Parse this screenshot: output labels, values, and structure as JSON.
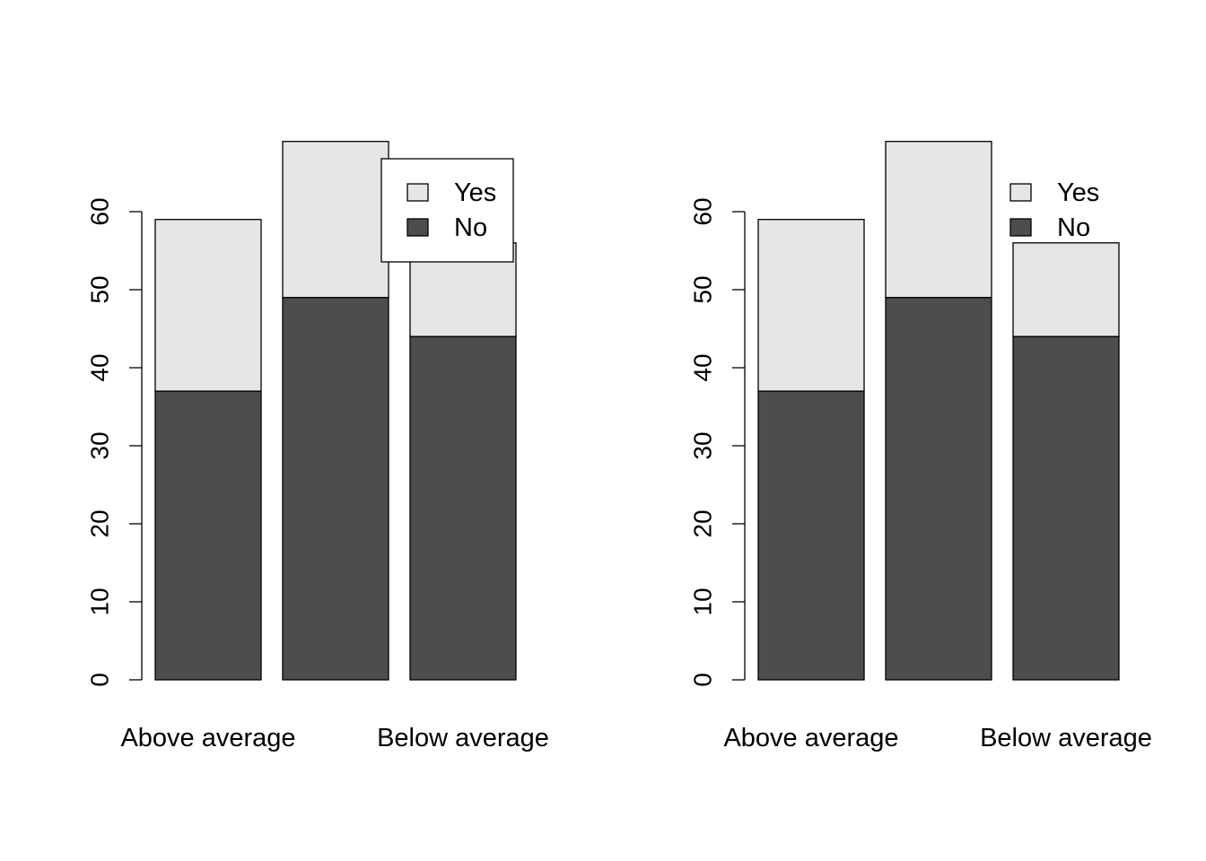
{
  "chart_data": [
    {
      "type": "bar",
      "stacked": true,
      "categories": [
        "Above average",
        "",
        "Below average"
      ],
      "series": [
        {
          "name": "No",
          "values": [
            37,
            49,
            44
          ],
          "color": "#4d4d4d"
        },
        {
          "name": "Yes",
          "values": [
            22,
            20,
            12
          ],
          "color": "#e6e6e6"
        }
      ],
      "yticks": [
        "0",
        "10",
        "20",
        "30",
        "40",
        "50",
        "60"
      ],
      "ylim": [
        0,
        69
      ],
      "grid": false,
      "legend": {
        "placement": "top-right",
        "boxed": true,
        "entries": [
          "Yes",
          "No"
        ]
      }
    },
    {
      "type": "bar",
      "stacked": true,
      "categories": [
        "Above average",
        "",
        "Below average"
      ],
      "series": [
        {
          "name": "No",
          "values": [
            37,
            49,
            44
          ],
          "color": "#4d4d4d"
        },
        {
          "name": "Yes",
          "values": [
            22,
            20,
            12
          ],
          "color": "#e6e6e6"
        }
      ],
      "yticks": [
        "0",
        "10",
        "20",
        "30",
        "40",
        "50",
        "60"
      ],
      "ylim": [
        0,
        69
      ],
      "grid": false,
      "legend": {
        "placement": "top-right",
        "boxed": false,
        "entries": [
          "Yes",
          "No"
        ]
      }
    }
  ]
}
